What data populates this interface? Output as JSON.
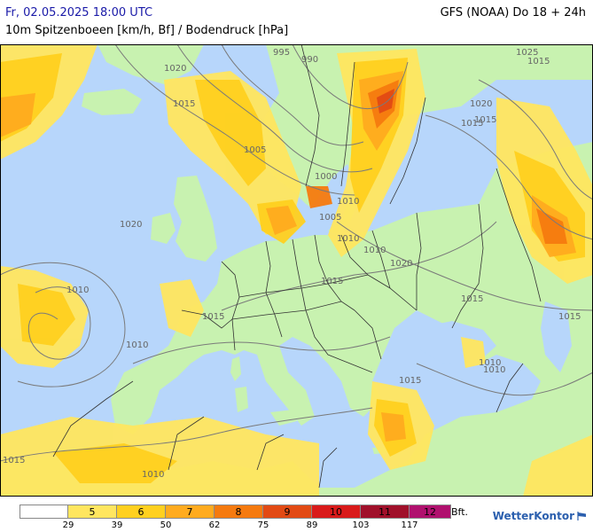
{
  "header": {
    "datetime": "Fr, 02.05.2025 18:00 UTC",
    "model": "GFS (NOAA) Do 18 + 24h",
    "subtitle": "10m Spitzenboeen [km/h, Bf] / Bodendruck [hPa]"
  },
  "colors": {
    "sea": "#b7d6fb",
    "land": "#c8f2b0",
    "bf4": "#ffe65f",
    "bf5": "#ffd01f",
    "bf6": "#ffab1f",
    "bf7": "#f57a0f",
    "bf8": "#e24a14",
    "isobar": "#7a7a7a",
    "border": "#333333"
  },
  "isobar_labels": [
    "995",
    "990",
    "1020",
    "1015",
    "1005",
    "1000",
    "1020",
    "1010",
    "1015",
    "1020",
    "1010",
    "1015",
    "1015",
    "1010",
    "1015",
    "1010",
    "1015",
    "1010",
    "1015",
    "1025",
    "1020",
    "1015",
    "1005",
    "1015",
    "1010",
    "1010",
    "1015",
    "1010"
  ],
  "legend": {
    "bft_label": "Bft.",
    "bins": [
      "",
      "5",
      "6",
      "7",
      "8",
      "9",
      "10",
      "11",
      "12"
    ],
    "bin_colors": [
      "#ffffff",
      "#ffe65f",
      "#ffd01f",
      "#ffab1f",
      "#f57a0f",
      "#e24a14",
      "#d91a1a",
      "#a0102a",
      "#b0106e"
    ],
    "ticks": [
      "29",
      "39",
      "50",
      "62",
      "75",
      "89",
      "103",
      "117"
    ]
  },
  "brand": "WetterKontor"
}
